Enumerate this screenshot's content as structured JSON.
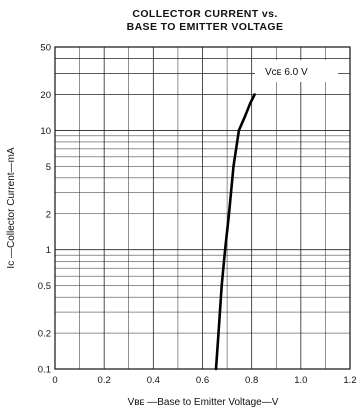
{
  "chart_data": {
    "type": "line",
    "title_line1": "COLLECTOR CURRENT vs.",
    "title_line2": "BASE TO EMITTER VOLTAGE",
    "xlabel": "Vʙᴇ —Base to Emitter Voltage—V",
    "ylabel": "Iᴄ —Collector Current—mA",
    "annotation": "Vᴄᴇ  6.0 V",
    "x_scale": "linear",
    "y_scale": "log",
    "xlim": [
      0,
      1.2
    ],
    "ylim": [
      0.1,
      50
    ],
    "x_ticks": [
      "0",
      "0.2",
      "0.4",
      "0.6",
      "0.8",
      "1.0",
      "1.2"
    ],
    "y_ticks": [
      "0.1",
      "0.2",
      "0.5",
      "1",
      "2",
      "5",
      "10",
      "20",
      "50"
    ],
    "grid": true,
    "series": [
      {
        "x": [
          0.655,
          0.665,
          0.678,
          0.692,
          0.708,
          0.726,
          0.748,
          0.772,
          0.795,
          0.812
        ],
        "y": [
          0.1,
          0.2,
          0.5,
          1,
          2,
          5,
          10,
          13,
          17,
          20
        ]
      }
    ]
  }
}
